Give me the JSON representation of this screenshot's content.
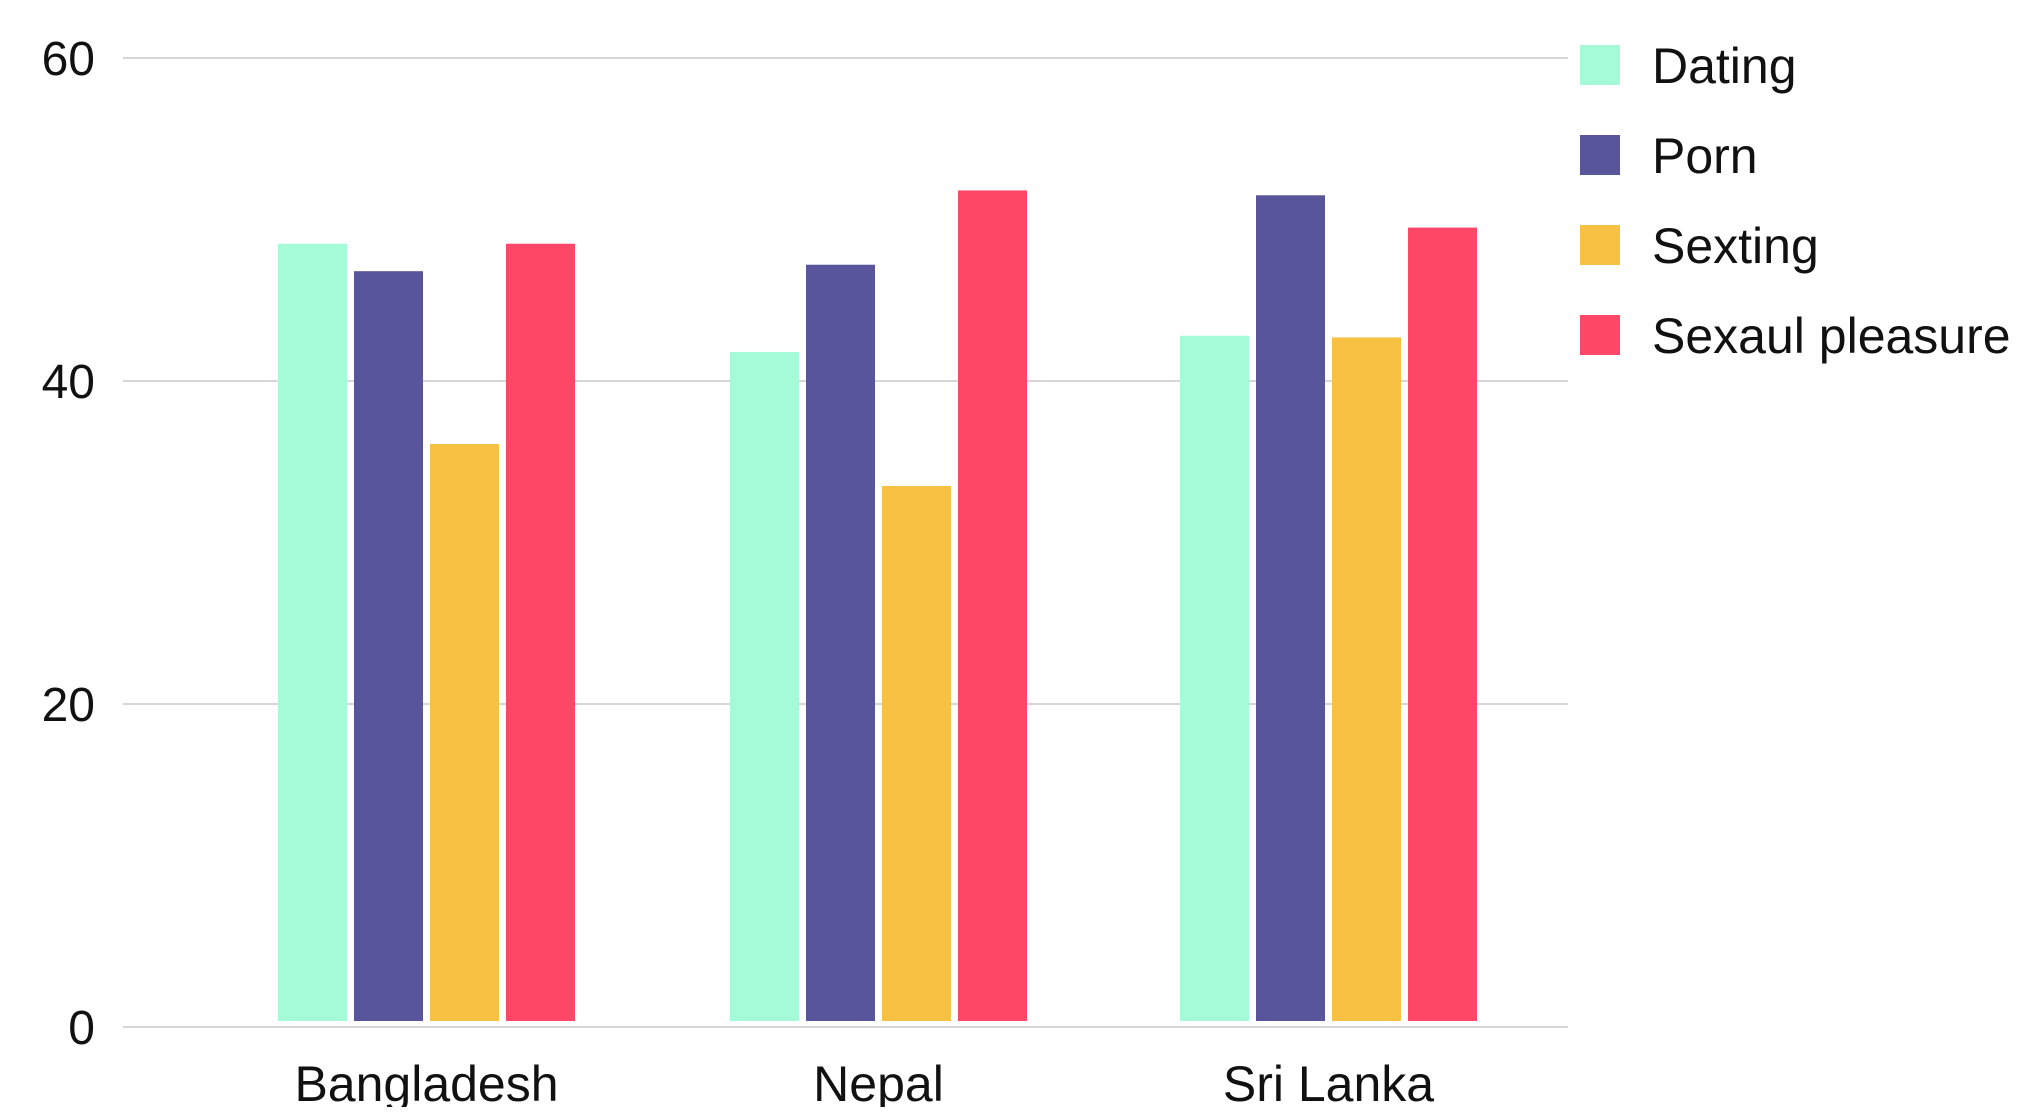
{
  "chart_data": {
    "type": "bar",
    "title": "",
    "xlabel": "",
    "ylabel": "",
    "categories": [
      "Bangladesh",
      "Nepal",
      "Sri Lanka"
    ],
    "series": [
      {
        "name": "Dating",
        "color": "#a5fbd8",
        "values": [
          48.5,
          41.8,
          42.8
        ]
      },
      {
        "name": "Porn",
        "color": "#58559b",
        "values": [
          46.8,
          47.2,
          51.5
        ]
      },
      {
        "name": "Sexting",
        "color": "#f7c244",
        "values": [
          36.1,
          33.5,
          42.7
        ]
      },
      {
        "name": "Sexaul pleasure",
        "color": "#ff4867",
        "values": [
          48.5,
          51.8,
          49.5
        ]
      }
    ],
    "ylim": [
      0,
      60
    ],
    "yticks": [
      0,
      20,
      40,
      60
    ],
    "grid": true,
    "legend_position": "top-right"
  }
}
